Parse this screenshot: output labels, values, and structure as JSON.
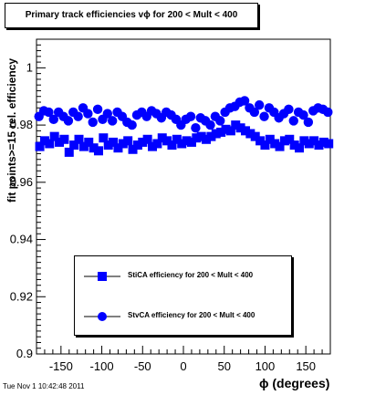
{
  "chart_data": {
    "type": "scatter",
    "title": "Primary track efficiencies vϕ for 200 < Mult < 400",
    "xlabel": "ϕ (degrees)",
    "ylabel": "fit points>=15 rel. efficiency",
    "xlim": [
      -180,
      180
    ],
    "ylim": [
      0.9,
      1.01
    ],
    "xticks": [
      -150,
      -100,
      -50,
      0,
      50,
      100,
      150
    ],
    "yticks": [
      0.9,
      0.92,
      0.94,
      0.96,
      0.98,
      1.0
    ],
    "ytick_labels": [
      "0.9",
      "0.92",
      "0.94",
      "0.96",
      "0.98",
      "1"
    ],
    "grid": false,
    "legend_position": "bottom-center",
    "colors": {
      "series": "#0000ff"
    },
    "series": [
      {
        "name": "StiCA efficiency  for 200 < Mult < 400",
        "marker": "square",
        "x": [
          -176,
          -170,
          -164,
          -158,
          -152,
          -146,
          -140,
          -134,
          -128,
          -122,
          -116,
          -110,
          -104,
          -98,
          -92,
          -86,
          -80,
          -74,
          -68,
          -62,
          -56,
          -50,
          -44,
          -38,
          -32,
          -26,
          -20,
          -14,
          -8,
          -2,
          4,
          10,
          16,
          22,
          28,
          34,
          40,
          46,
          52,
          58,
          64,
          70,
          76,
          82,
          88,
          94,
          100,
          106,
          112,
          118,
          124,
          130,
          136,
          142,
          148,
          154,
          160,
          166,
          172,
          178
        ],
        "y": [
          0.9725,
          0.9745,
          0.9735,
          0.976,
          0.974,
          0.975,
          0.9705,
          0.973,
          0.975,
          0.9725,
          0.974,
          0.972,
          0.971,
          0.9755,
          0.973,
          0.974,
          0.972,
          0.9735,
          0.9745,
          0.9715,
          0.973,
          0.974,
          0.975,
          0.9725,
          0.9735,
          0.9755,
          0.9745,
          0.973,
          0.975,
          0.9735,
          0.9745,
          0.974,
          0.9755,
          0.976,
          0.975,
          0.976,
          0.977,
          0.9775,
          0.9785,
          0.978,
          0.98,
          0.979,
          0.978,
          0.977,
          0.976,
          0.9745,
          0.973,
          0.975,
          0.9735,
          0.9725,
          0.9745,
          0.975,
          0.973,
          0.972,
          0.9745,
          0.9735,
          0.9745,
          0.973,
          0.974,
          0.9735
        ]
      },
      {
        "name": "StvCA efficiency  for 200 < Mult < 400",
        "marker": "circle",
        "x": [
          -177,
          -171,
          -165,
          -159,
          -153,
          -147,
          -141,
          -135,
          -129,
          -123,
          -117,
          -111,
          -105,
          -99,
          -93,
          -87,
          -81,
          -75,
          -69,
          -63,
          -57,
          -51,
          -45,
          -39,
          -33,
          -27,
          -21,
          -15,
          -9,
          -3,
          3,
          9,
          15,
          21,
          27,
          33,
          39,
          45,
          51,
          57,
          63,
          69,
          75,
          81,
          87,
          93,
          99,
          105,
          111,
          117,
          123,
          129,
          135,
          141,
          147,
          153,
          159,
          165,
          171,
          177
        ],
        "y": [
          0.983,
          0.985,
          0.9845,
          0.982,
          0.9845,
          0.983,
          0.9815,
          0.9845,
          0.983,
          0.986,
          0.984,
          0.981,
          0.9855,
          0.982,
          0.984,
          0.9815,
          0.9845,
          0.983,
          0.981,
          0.98,
          0.9835,
          0.9845,
          0.983,
          0.985,
          0.984,
          0.9825,
          0.9845,
          0.9835,
          0.982,
          0.98,
          0.982,
          0.983,
          0.979,
          0.9825,
          0.9815,
          0.98,
          0.983,
          0.9815,
          0.9845,
          0.986,
          0.9865,
          0.988,
          0.9885,
          0.986,
          0.9845,
          0.987,
          0.983,
          0.986,
          0.9845,
          0.9825,
          0.984,
          0.9855,
          0.9815,
          0.9845,
          0.9835,
          0.981,
          0.985,
          0.986,
          0.9855,
          0.9845
        ]
      }
    ]
  },
  "footer": {
    "timestamp": "Tue Nov  1 10:42:48 2011"
  }
}
